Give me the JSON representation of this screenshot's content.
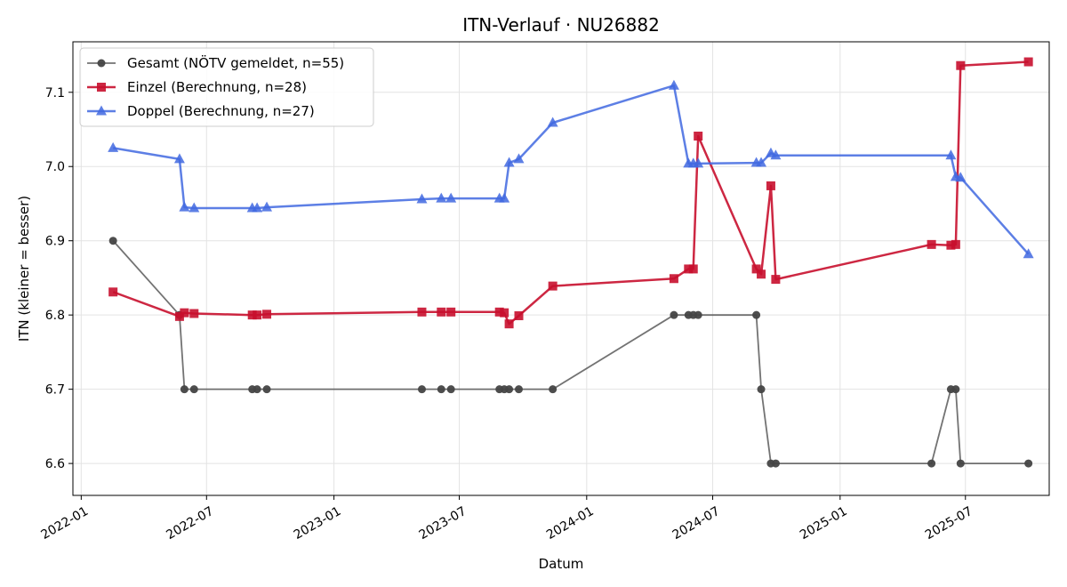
{
  "chart_data": {
    "type": "line",
    "title": "ITN-Verlauf · NU26882",
    "xlabel": "Datum",
    "ylabel": "ITN  (kleiner = besser)",
    "xlim": [
      "2021-12-20",
      "2025-10-30"
    ],
    "ylim": [
      6.557,
      7.168
    ],
    "x_ticks": [
      "2022-01",
      "2022-07",
      "2023-01",
      "2023-07",
      "2024-01",
      "2024-07",
      "2025-01",
      "2025-07"
    ],
    "y_ticks": [
      6.6,
      6.7,
      6.8,
      6.9,
      7.0,
      7.1
    ],
    "y_tick_labels": [
      "6.6",
      "6.7",
      "6.8",
      "6.9",
      "7.0",
      "7.1"
    ],
    "grid": true,
    "legend_position": "top-left",
    "series": [
      {
        "name": "Gesamt (NÖTV gemeldet, n=55)",
        "color": "#444444",
        "marker": "circle",
        "points": [
          [
            "2022-02-16",
            6.9
          ],
          [
            "2022-05-23",
            6.8
          ],
          [
            "2022-05-30",
            6.7
          ],
          [
            "2022-06-13",
            6.7
          ],
          [
            "2022-09-05",
            6.7
          ],
          [
            "2022-09-12",
            6.7
          ],
          [
            "2022-09-26",
            6.7
          ],
          [
            "2023-05-08",
            6.7
          ],
          [
            "2023-06-05",
            6.7
          ],
          [
            "2023-06-19",
            6.7
          ],
          [
            "2023-08-28",
            6.7
          ],
          [
            "2023-09-04",
            6.7
          ],
          [
            "2023-09-11",
            6.7
          ],
          [
            "2023-09-25",
            6.7
          ],
          [
            "2023-11-13",
            6.7
          ],
          [
            "2024-05-06",
            6.8
          ],
          [
            "2024-05-27",
            6.8
          ],
          [
            "2024-06-03",
            6.8
          ],
          [
            "2024-06-10",
            6.8
          ],
          [
            "2024-09-02",
            6.8
          ],
          [
            "2024-09-09",
            6.7
          ],
          [
            "2024-09-23",
            6.6
          ],
          [
            "2024-09-30",
            6.6
          ],
          [
            "2025-05-13",
            6.6
          ],
          [
            "2025-06-10",
            6.7
          ],
          [
            "2025-06-17",
            6.7
          ],
          [
            "2025-06-24",
            6.6
          ],
          [
            "2025-09-30",
            6.6
          ]
        ]
      },
      {
        "name": "Einzel (Berechnung, n=28)",
        "color": "#c8102e",
        "marker": "square",
        "points": [
          [
            "2022-02-16",
            6.831
          ],
          [
            "2022-05-23",
            6.798
          ],
          [
            "2022-05-30",
            6.803
          ],
          [
            "2022-06-13",
            6.802
          ],
          [
            "2022-09-05",
            6.8
          ],
          [
            "2022-09-12",
            6.8
          ],
          [
            "2022-09-26",
            6.801
          ],
          [
            "2023-05-08",
            6.804
          ],
          [
            "2023-06-05",
            6.804
          ],
          [
            "2023-06-19",
            6.804
          ],
          [
            "2023-08-28",
            6.804
          ],
          [
            "2023-09-04",
            6.803
          ],
          [
            "2023-09-11",
            6.788
          ],
          [
            "2023-09-25",
            6.799
          ],
          [
            "2023-11-13",
            6.839
          ],
          [
            "2024-05-06",
            6.849
          ],
          [
            "2024-05-27",
            6.862
          ],
          [
            "2024-06-03",
            6.862
          ],
          [
            "2024-06-10",
            7.041
          ],
          [
            "2024-09-02",
            6.862
          ],
          [
            "2024-09-09",
            6.855
          ],
          [
            "2024-09-23",
            6.974
          ],
          [
            "2024-09-30",
            6.848
          ],
          [
            "2025-05-13",
            6.895
          ],
          [
            "2025-06-10",
            6.894
          ],
          [
            "2025-06-17",
            6.895
          ],
          [
            "2025-06-24",
            7.136
          ],
          [
            "2025-09-30",
            7.141
          ]
        ]
      },
      {
        "name": "Doppel (Berechnung, n=27)",
        "color": "#4169e1",
        "marker": "triangle",
        "points": [
          [
            "2022-02-16",
            7.025
          ],
          [
            "2022-05-23",
            7.01
          ],
          [
            "2022-05-30",
            6.945
          ],
          [
            "2022-06-13",
            6.944
          ],
          [
            "2022-09-05",
            6.944
          ],
          [
            "2022-09-12",
            6.944
          ],
          [
            "2022-09-26",
            6.945
          ],
          [
            "2023-05-08",
            6.956
          ],
          [
            "2023-06-05",
            6.957
          ],
          [
            "2023-06-19",
            6.957
          ],
          [
            "2023-08-28",
            6.957
          ],
          [
            "2023-09-04",
            6.957
          ],
          [
            "2023-09-11",
            7.005
          ],
          [
            "2023-09-25",
            7.01
          ],
          [
            "2023-11-13",
            7.059
          ],
          [
            "2024-05-06",
            7.109
          ],
          [
            "2024-05-27",
            7.004
          ],
          [
            "2024-06-03",
            7.004
          ],
          [
            "2024-06-10",
            7.004
          ],
          [
            "2024-09-02",
            7.005
          ],
          [
            "2024-09-09",
            7.005
          ],
          [
            "2024-09-23",
            7.018
          ],
          [
            "2024-09-30",
            7.015
          ],
          [
            "2025-06-10",
            7.015
          ],
          [
            "2025-06-17",
            6.986
          ],
          [
            "2025-06-24",
            6.985
          ],
          [
            "2025-09-30",
            6.882
          ]
        ]
      }
    ]
  }
}
